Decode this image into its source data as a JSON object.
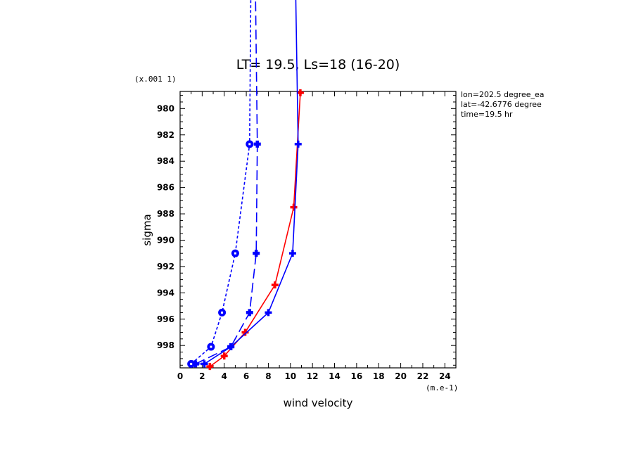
{
  "chart_data": {
    "type": "line",
    "title": "LT= 19.5, Ls=18 (16-20)",
    "xlabel": "wind velocity",
    "ylabel": "sigma",
    "x_multiplier_label": "(m.e-1)",
    "y_multiplier_label": "(x.001 1)",
    "xlim": [
      0,
      25
    ],
    "ylim": [
      999.7,
      978.7
    ],
    "x_ticks": [
      "0",
      "2",
      "4",
      "6",
      "8",
      "10",
      "12",
      "14",
      "16",
      "18",
      "20",
      "22",
      "24"
    ],
    "y_ticks": [
      "980",
      "982",
      "984",
      "986",
      "988",
      "990",
      "992",
      "994",
      "996",
      "998"
    ],
    "info_lines": [
      "lon=202.5 degree_ea",
      "lat=-42.6776 degree",
      "time=19.5 hr"
    ],
    "grid": false,
    "series": [
      {
        "color": "#ff0000",
        "line_style": "solid",
        "marker": "plus",
        "points": [
          [
            2.7,
            999.6
          ],
          [
            4.0,
            998.8
          ],
          [
            5.9,
            997.0
          ],
          [
            8.6,
            993.4
          ],
          [
            10.3,
            987.5
          ],
          [
            10.9,
            978.8
          ]
        ]
      },
      {
        "color": "#0000ff",
        "line_style": "solid",
        "marker": "plus",
        "points": [
          [
            1.1,
            999.4
          ],
          [
            2.2,
            999.4
          ],
          [
            4.6,
            998.1
          ],
          [
            8.0,
            995.5
          ],
          [
            10.2,
            991.0
          ],
          [
            10.7,
            982.7
          ],
          [
            10.3,
            962.0
          ]
        ]
      },
      {
        "color": "#0000ff",
        "line_style": "long-dash",
        "marker": "plus-heavy",
        "points": [
          [
            1.4,
            999.4
          ],
          [
            4.6,
            998.1
          ],
          [
            6.3,
            995.5
          ],
          [
            6.9,
            991.0
          ],
          [
            7.0,
            982.7
          ],
          [
            6.7,
            962.0
          ]
        ]
      },
      {
        "color": "#0000ff",
        "line_style": "short-dash",
        "marker": "circle-square",
        "points": [
          [
            1.0,
            999.4
          ],
          [
            2.8,
            998.1
          ],
          [
            3.8,
            995.5
          ],
          [
            5.0,
            991.0
          ],
          [
            6.3,
            982.7
          ],
          [
            6.5,
            962.0
          ]
        ]
      }
    ]
  }
}
